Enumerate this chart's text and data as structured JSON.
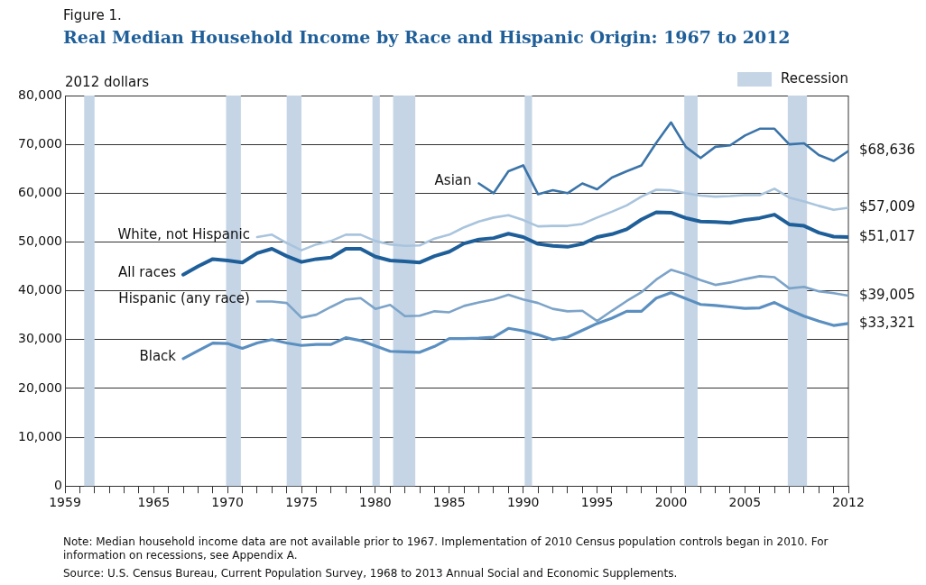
{
  "chart_data": {
    "type": "line",
    "title": "Real Median Household Income by Race and Hispanic Origin: 1967 to 2012",
    "ylabel": "2012 dollars",
    "annotations": [
      "Figure 1.",
      "Note: Median household income data are not available prior to 1967. Implementation of 2010 Census population controls began in 2010. For information on recessions, see Appendix A.",
      "Source: U.S. Census Bureau, Current Population Survey, 1968 to 2013 Annual Social and Economic Supplements."
    ],
    "xlim": [
      1959,
      2012
    ],
    "xticks": [
      1959,
      {
        "value": 1960,
        "label": null
      },
      {
        "value": 1961,
        "label": null
      },
      {
        "value": 1962,
        "label": null
      },
      {
        "value": 1963,
        "label": null
      },
      {
        "value": 1964,
        "label": null
      },
      1965,
      {
        "value": 1966,
        "label": null
      },
      {
        "value": 1967,
        "label": null
      },
      {
        "value": 1968,
        "label": null
      },
      {
        "value": 1969,
        "label": null
      },
      1970,
      {
        "value": 1971,
        "label": null
      },
      {
        "value": 1972,
        "label": null
      },
      {
        "value": 1973,
        "label": null
      },
      {
        "value": 1974,
        "label": null
      },
      1975,
      {
        "value": 1976,
        "label": null
      },
      {
        "value": 1977,
        "label": null
      },
      {
        "value": 1978,
        "label": null
      },
      {
        "value": 1979,
        "label": null
      },
      1980,
      {
        "value": 1981,
        "label": null
      },
      {
        "value": 1982,
        "label": null
      },
      {
        "value": 1983,
        "label": null
      },
      {
        "value": 1984,
        "label": null
      },
      1985,
      {
        "value": 1986,
        "label": null
      },
      {
        "value": 1987,
        "label": null
      },
      {
        "value": 1988,
        "label": null
      },
      {
        "value": 1989,
        "label": null
      },
      1990,
      {
        "value": 1991,
        "label": null
      },
      {
        "value": 1992,
        "label": null
      },
      {
        "value": 1993,
        "label": null
      },
      {
        "value": 1994,
        "label": null
      },
      1995,
      {
        "value": 1996,
        "label": null
      },
      {
        "value": 1997,
        "label": null
      },
      {
        "value": 1998,
        "label": null
      },
      {
        "value": 1999,
        "label": null
      },
      2000,
      {
        "value": 2001,
        "label": null
      },
      {
        "value": 2002,
        "label": null
      },
      {
        "value": 2003,
        "label": null
      },
      {
        "value": 2004,
        "label": null
      },
      2005,
      {
        "value": 2006,
        "label": null
      },
      {
        "value": 2007,
        "label": null
      },
      {
        "value": 2008,
        "label": null
      },
      {
        "value": 2009,
        "label": null
      },
      {
        "value": 2010,
        "label": null
      },
      {
        "value": 2011,
        "label": null
      },
      2012
    ],
    "ylim": [
      0,
      80000
    ],
    "yticks": [
      {
        "value": 0,
        "label": "0"
      },
      {
        "value": 10000,
        "label": "10,000"
      },
      {
        "value": 20000,
        "label": "20,000"
      },
      {
        "value": 30000,
        "label": "30,000"
      },
      {
        "value": 40000,
        "label": "40,000"
      },
      {
        "value": 50000,
        "label": "50,000"
      },
      {
        "value": 60000,
        "label": "60,000"
      },
      {
        "value": 70000,
        "label": "70,000"
      },
      {
        "value": 80000,
        "label": "80,000"
      }
    ],
    "grid": "y",
    "legend": "top right",
    "marker": "none",
    "line_style": "solid",
    "bands": [
      {
        "axis": "x",
        "from": 1960.3,
        "to": 1961.0,
        "label": "Recession",
        "color": "#c5d5e6"
      },
      {
        "axis": "x",
        "from": 1969.9,
        "to": 1970.9,
        "color": "#c5d5e6"
      },
      {
        "axis": "x",
        "from": 1974.0,
        "to": 1975.0,
        "color": "#c5d5e6"
      },
      {
        "axis": "x",
        "from": 1979.8,
        "to": 1980.3,
        "color": "#c5d5e6"
      },
      {
        "axis": "x",
        "from": 1981.2,
        "to": 1982.7,
        "color": "#c5d5e6"
      },
      {
        "axis": "x",
        "from": 1990.1,
        "to": 1990.6,
        "color": "#c5d5e6"
      },
      {
        "axis": "x",
        "from": 2000.9,
        "to": 2001.8,
        "color": "#c5d5e6"
      },
      {
        "axis": "x",
        "from": 2007.9,
        "to": 2009.2,
        "color": "#c5d5e6"
      }
    ],
    "series": [
      {
        "name": "Asian",
        "color": "#3b74a8",
        "x": [
          1987,
          1988,
          1989,
          1990,
          1991,
          1992,
          1993,
          1994,
          1995,
          1996,
          1997,
          1998,
          1999,
          2000,
          2001,
          2002,
          2003,
          2004,
          2005,
          2006,
          2007,
          2008,
          2009,
          2010,
          2011,
          2012
        ],
        "values": [
          62000,
          60000,
          64500,
          65700,
          59800,
          60600,
          60000,
          62000,
          60800,
          63200,
          64500,
          65700,
          70300,
          74500,
          69500,
          67200,
          69500,
          69800,
          71800,
          73200,
          73200,
          70000,
          70200,
          67800,
          66600,
          68636
        ],
        "value_labels": [
          null,
          null,
          null,
          null,
          null,
          null,
          null,
          null,
          null,
          null,
          null,
          null,
          null,
          null,
          null,
          null,
          null,
          null,
          null,
          null,
          null,
          null,
          null,
          null,
          null,
          "$68,636"
        ]
      },
      {
        "name": "White, not Hispanic",
        "color": "#a9c4dd",
        "x": [
          1972,
          1973,
          1974,
          1975,
          1976,
          1977,
          1978,
          1979,
          1980,
          1981,
          1982,
          1983,
          1984,
          1985,
          1986,
          1987,
          1988,
          1989,
          1990,
          1991,
          1992,
          1993,
          1994,
          1995,
          1996,
          1997,
          1998,
          1999,
          2000,
          2001,
          2002,
          2003,
          2004,
          2005,
          2006,
          2007,
          2008,
          2009,
          2010,
          2011,
          2012
        ],
        "values": [
          51000,
          51500,
          49800,
          48300,
          49500,
          50200,
          51500,
          51500,
          50200,
          49500,
          49200,
          49300,
          50700,
          51500,
          53000,
          54200,
          55000,
          55500,
          54500,
          53200,
          53300,
          53300,
          53700,
          55000,
          56200,
          57500,
          59300,
          60700,
          60600,
          60000,
          59500,
          59300,
          59400,
          59600,
          59600,
          60900,
          59100,
          58300,
          57400,
          56600,
          57009
        ],
        "value_labels": [
          null,
          null,
          null,
          null,
          null,
          null,
          null,
          null,
          null,
          null,
          null,
          null,
          null,
          null,
          null,
          null,
          null,
          null,
          null,
          null,
          null,
          null,
          null,
          null,
          null,
          null,
          null,
          null,
          null,
          null,
          null,
          null,
          null,
          null,
          null,
          null,
          null,
          null,
          null,
          null,
          "$57,009"
        ]
      },
      {
        "name": "All races",
        "color": "#1f5f99",
        "x": [
          1967,
          1968,
          1969,
          1970,
          1971,
          1972,
          1973,
          1974,
          1975,
          1976,
          1977,
          1978,
          1979,
          1980,
          1981,
          1982,
          1983,
          1984,
          1985,
          1986,
          1987,
          1988,
          1989,
          1990,
          1991,
          1992,
          1993,
          1994,
          1995,
          1996,
          1997,
          1998,
          1999,
          2000,
          2001,
          2002,
          2003,
          2004,
          2005,
          2006,
          2007,
          2008,
          2009,
          2010,
          2011,
          2012
        ],
        "values": [
          43300,
          45000,
          46500,
          46200,
          45800,
          47700,
          48600,
          47100,
          45900,
          46500,
          46800,
          48600,
          48600,
          47000,
          46200,
          46000,
          45800,
          47100,
          48000,
          49700,
          50500,
          50800,
          51700,
          51000,
          49600,
          49200,
          49000,
          49600,
          51000,
          51600,
          52600,
          54600,
          56100,
          56000,
          54900,
          54200,
          54100,
          53900,
          54500,
          54900,
          55600,
          53600,
          53300,
          51900,
          51100,
          51017
        ],
        "value_labels": [
          null,
          null,
          null,
          null,
          null,
          null,
          null,
          null,
          null,
          null,
          null,
          null,
          null,
          null,
          null,
          null,
          null,
          null,
          null,
          null,
          null,
          null,
          null,
          null,
          null,
          null,
          null,
          null,
          null,
          null,
          null,
          null,
          null,
          null,
          null,
          null,
          null,
          null,
          null,
          null,
          null,
          null,
          null,
          null,
          null,
          "$51,017"
        ]
      },
      {
        "name": "Hispanic (any race)",
        "color": "#7ca3c8",
        "x": [
          1972,
          1973,
          1974,
          1975,
          1976,
          1977,
          1978,
          1979,
          1980,
          1981,
          1982,
          1983,
          1984,
          1985,
          1986,
          1987,
          1988,
          1989,
          1990,
          1991,
          1992,
          1993,
          1994,
          1995,
          1996,
          1997,
          1998,
          1999,
          2000,
          2001,
          2002,
          2003,
          2004,
          2005,
          2006,
          2007,
          2008,
          2009,
          2010,
          2011,
          2012
        ],
        "values": [
          37800,
          37800,
          37500,
          34500,
          35100,
          36700,
          38200,
          38500,
          36300,
          37100,
          34800,
          34900,
          35800,
          35600,
          36900,
          37600,
          38200,
          39200,
          38200,
          37500,
          36300,
          35800,
          35900,
          33800,
          35900,
          37900,
          39700,
          42300,
          44300,
          43400,
          42200,
          41200,
          41700,
          42400,
          43000,
          42800,
          40500,
          40800,
          39900,
          39500,
          39005
        ],
        "value_labels": [
          null,
          null,
          null,
          null,
          null,
          null,
          null,
          null,
          null,
          null,
          null,
          null,
          null,
          null,
          null,
          null,
          null,
          null,
          null,
          null,
          null,
          null,
          null,
          null,
          null,
          null,
          null,
          null,
          null,
          null,
          null,
          null,
          null,
          null,
          null,
          null,
          null,
          null,
          null,
          null,
          "$39,005"
        ]
      },
      {
        "name": "Black",
        "color": "#5b8fc0",
        "x": [
          1967,
          1968,
          1969,
          1970,
          1971,
          1972,
          1973,
          1974,
          1975,
          1976,
          1977,
          1978,
          1979,
          1980,
          1981,
          1982,
          1983,
          1984,
          1985,
          1986,
          1987,
          1988,
          1989,
          1990,
          1991,
          1992,
          1993,
          1994,
          1995,
          1996,
          1997,
          1998,
          1999,
          2000,
          2001,
          2002,
          2003,
          2004,
          2005,
          2006,
          2007,
          2008,
          2009,
          2010,
          2011,
          2012
        ],
        "values": [
          26100,
          27700,
          29300,
          29200,
          28200,
          29300,
          30000,
          29300,
          28800,
          29000,
          29000,
          30400,
          29800,
          28700,
          27600,
          27500,
          27400,
          28600,
          30200,
          30200,
          30300,
          30500,
          32300,
          31800,
          31000,
          30000,
          30500,
          31900,
          33300,
          34400,
          35800,
          35800,
          38500,
          39600,
          38400,
          37200,
          37000,
          36700,
          36400,
          36500,
          37600,
          36100,
          34800,
          33800,
          32900,
          33321
        ],
        "value_labels": [
          null,
          null,
          null,
          null,
          null,
          null,
          null,
          null,
          null,
          null,
          null,
          null,
          null,
          null,
          null,
          null,
          null,
          null,
          null,
          null,
          null,
          null,
          null,
          null,
          null,
          null,
          null,
          null,
          null,
          null,
          null,
          null,
          null,
          null,
          null,
          null,
          null,
          null,
          null,
          null,
          null,
          null,
          null,
          null,
          null,
          "$33,321"
        ]
      }
    ]
  }
}
